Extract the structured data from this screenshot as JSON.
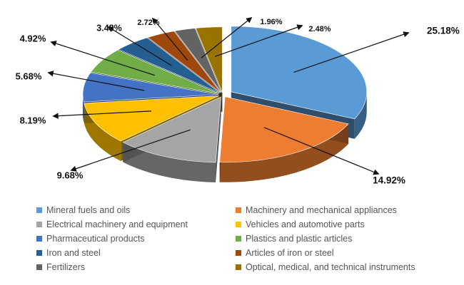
{
  "chart_data": {
    "type": "pie",
    "title": "",
    "categories": [
      "Mineral fuels and oils",
      "Machinery and mechanical appliances",
      "Electrical machinery and equipment",
      "Vehicles and automotive parts",
      "Pharmaceutical products",
      "Plastics and plastic articles",
      "Iron and steel",
      "Articles of iron or steel",
      "Fertilizers",
      "Optical, medical, and technical instruments"
    ],
    "values": [
      25.18,
      14.92,
      9.68,
      8.19,
      5.68,
      4.92,
      3.48,
      2.72,
      1.96,
      2.48
    ],
    "data_labels": [
      "25.18%",
      "14.92%",
      "9.68%",
      "8.19%",
      "5.68%",
      "4.92%",
      "3.48%",
      "2.72%",
      "1.96%",
      "2.48%"
    ],
    "colors": [
      "#5B9BD5",
      "#ED7D31",
      "#A5A5A5",
      "#FFC000",
      "#4472C4",
      "#70AD47",
      "#255E91",
      "#9E480E",
      "#636363",
      "#997300"
    ],
    "style": "3d-exploded-pie",
    "legend_position": "bottom"
  }
}
